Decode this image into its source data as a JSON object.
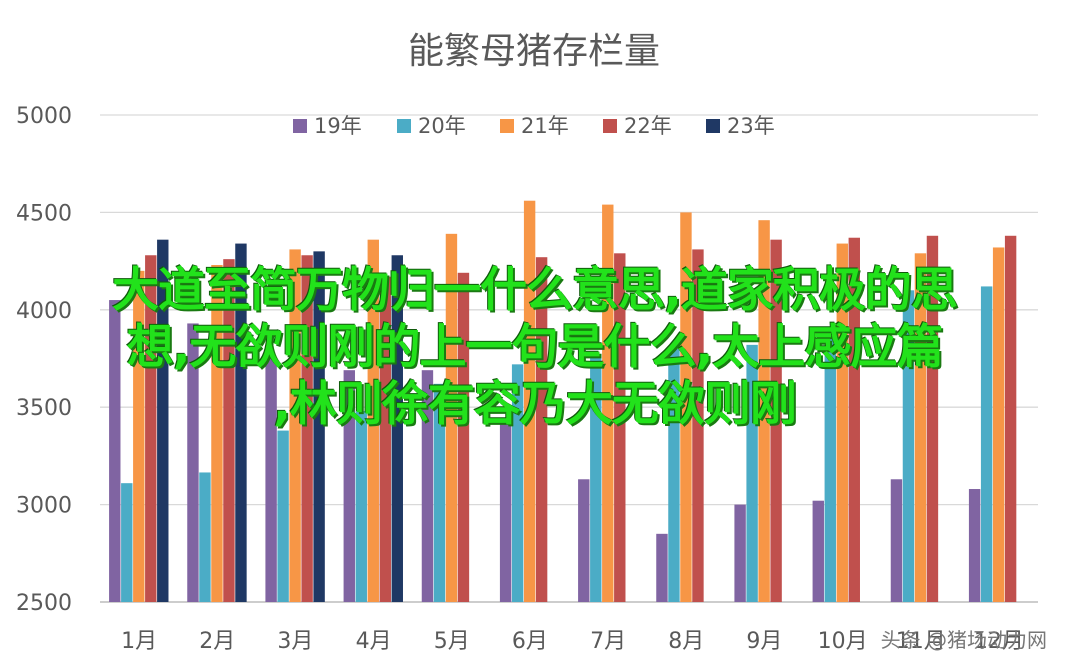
{
  "chart_data": {
    "type": "bar",
    "title": "能繁母猪存栏量",
    "categories": [
      "1月",
      "2月",
      "3月",
      "4月",
      "5月",
      "6月",
      "7月",
      "8月",
      "9月",
      "10月",
      "11月",
      "12月"
    ],
    "ylim": [
      2500,
      5000
    ],
    "yticks": [
      2500,
      3000,
      3500,
      4000,
      4500,
      5000
    ],
    "grid": true,
    "legend_position": "top",
    "series": [
      {
        "name": "19年",
        "color": "#8064a2",
        "values": [
          4050,
          3930,
          3750,
          3690,
          3690,
          3440,
          3130,
          2850,
          3000,
          3020,
          3130,
          3080
        ]
      },
      {
        "name": "20年",
        "color": "#4bacc6",
        "values": [
          3110,
          3165,
          3380,
          3480,
          3620,
          3720,
          3760,
          3800,
          3820,
          3850,
          4100,
          4120
        ]
      },
      {
        "name": "21年",
        "color": "#f79646",
        "values": [
          4200,
          4230,
          4310,
          4360,
          4390,
          4560,
          4540,
          4500,
          4460,
          4340,
          4290,
          4320
        ]
      },
      {
        "name": "22年",
        "color": "#c0504d",
        "values": [
          4280,
          4260,
          4280,
          4170,
          4190,
          4270,
          4290,
          4310,
          4360,
          4370,
          4380,
          4380
        ]
      },
      {
        "name": "23年",
        "color": "#1f3864",
        "values": [
          4360,
          4340,
          4300,
          4280,
          null,
          null,
          null,
          null,
          null,
          null,
          null,
          null
        ]
      }
    ]
  },
  "overlay": {
    "line1": "大道至简万物归一什么意思,道家积极的思",
    "line2": "想,无欲则刚的上一句是什么,太上感应篇",
    "line3": ",林则徐有容乃大无欲则刚"
  },
  "watermark": "头条 @猪场动力网"
}
